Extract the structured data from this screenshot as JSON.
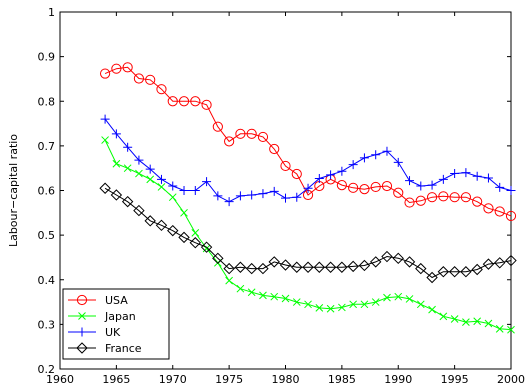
{
  "chart_data": {
    "type": "line",
    "title": "",
    "xlabel": "",
    "ylabel": "Labour−capital ratio",
    "xlim": [
      1960,
      2000
    ],
    "ylim": [
      0.2,
      1.0
    ],
    "xticks": [
      1960,
      1965,
      1970,
      1975,
      1980,
      1985,
      1990,
      1995,
      2000
    ],
    "yticks": [
      0.2,
      0.3,
      0.4,
      0.5,
      0.6,
      0.7,
      0.8,
      0.9,
      1.0
    ],
    "ytick_labels": [
      "0.2",
      "0.3",
      "0.4",
      "0.5",
      "0.6",
      "0.7",
      "0.8",
      "0.9",
      "1"
    ],
    "grid": false,
    "legend_position": "bottom-left",
    "x": [
      1964,
      1965,
      1966,
      1967,
      1968,
      1969,
      1970,
      1971,
      1972,
      1973,
      1974,
      1975,
      1976,
      1977,
      1978,
      1979,
      1980,
      1981,
      1982,
      1983,
      1984,
      1985,
      1986,
      1987,
      1988,
      1989,
      1990,
      1991,
      1992,
      1993,
      1994,
      1995,
      1996,
      1997,
      1998,
      1999,
      2000
    ],
    "series": [
      {
        "name": "USA",
        "color": "#ff0000",
        "marker": "circle",
        "values": [
          0.862,
          0.873,
          0.876,
          0.851,
          0.848,
          0.827,
          0.8,
          0.8,
          0.8,
          0.792,
          0.743,
          0.71,
          0.727,
          0.727,
          0.72,
          0.693,
          0.655,
          0.637,
          0.59,
          0.61,
          0.625,
          0.612,
          0.606,
          0.603,
          0.608,
          0.61,
          0.595,
          0.573,
          0.577,
          0.585,
          0.587,
          0.585,
          0.585,
          0.575,
          0.56,
          0.553,
          0.543
        ]
      },
      {
        "name": "Japan",
        "color": "#00ff00",
        "marker": "x",
        "values": [
          0.713,
          0.66,
          0.65,
          0.638,
          0.625,
          0.608,
          0.585,
          0.55,
          0.505,
          0.47,
          0.438,
          0.398,
          0.38,
          0.372,
          0.365,
          0.362,
          0.358,
          0.35,
          0.345,
          0.337,
          0.335,
          0.338,
          0.345,
          0.345,
          0.35,
          0.36,
          0.362,
          0.357,
          0.345,
          0.333,
          0.318,
          0.312,
          0.305,
          0.307,
          0.302,
          0.29,
          0.288
        ]
      },
      {
        "name": "UK",
        "color": "#0000ff",
        "marker": "plus",
        "values": [
          0.76,
          0.727,
          0.697,
          0.668,
          0.648,
          0.625,
          0.61,
          0.6,
          0.6,
          0.62,
          0.588,
          0.575,
          0.588,
          0.59,
          0.593,
          0.598,
          0.583,
          0.585,
          0.605,
          0.627,
          0.635,
          0.643,
          0.658,
          0.673,
          0.68,
          0.688,
          0.663,
          0.622,
          0.61,
          0.612,
          0.625,
          0.638,
          0.64,
          0.632,
          0.628,
          0.607,
          0.6
        ]
      },
      {
        "name": "France",
        "color": "#000000",
        "marker": "diamond",
        "values": [
          0.605,
          0.59,
          0.575,
          0.555,
          0.532,
          0.522,
          0.51,
          0.495,
          0.483,
          0.473,
          0.448,
          0.425,
          0.428,
          0.425,
          0.425,
          0.44,
          0.433,
          0.428,
          0.428,
          0.428,
          0.428,
          0.428,
          0.43,
          0.432,
          0.44,
          0.452,
          0.448,
          0.44,
          0.425,
          0.405,
          0.418,
          0.418,
          0.418,
          0.423,
          0.435,
          0.438,
          0.443
        ]
      }
    ]
  }
}
